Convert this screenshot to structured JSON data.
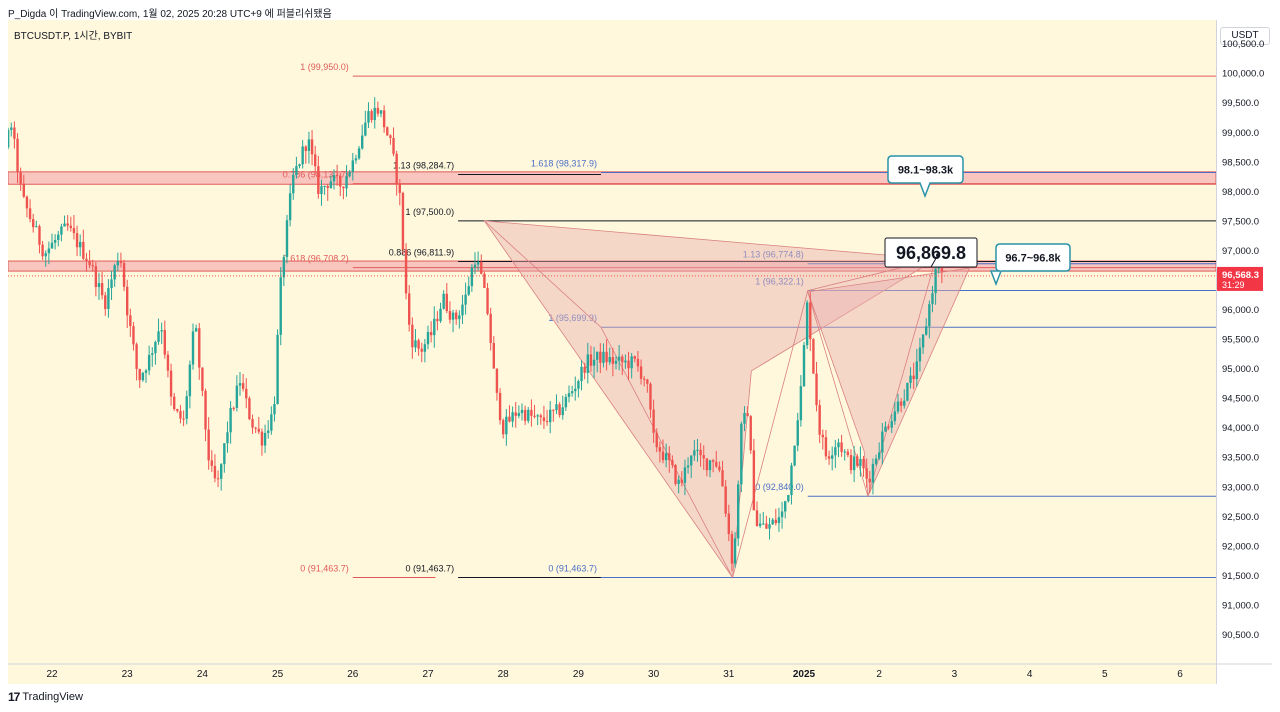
{
  "header": {
    "publish_line": "P_Digda 이 TradingView.com, 1월 02, 2025 20:28 UTC+9 에 퍼블리쉬됐음",
    "symbol_line": "BTCUSDT.P, 1시간, BYBIT"
  },
  "footer": {
    "logo": "17",
    "brand": "TradingView"
  },
  "currency": "USDT",
  "chart_data": {
    "type": "candlestick",
    "symbol": "BTCUSDT.P",
    "interval": "1시간",
    "exchange": "BYBIT",
    "ylim": [
      90000,
      100900
    ],
    "y_ticks": [
      "90,500.0",
      "91,000.0",
      "91,500.0",
      "92,000.0",
      "92,500.0",
      "93,000.0",
      "93,500.0",
      "94,000.0",
      "94,500.0",
      "95,000.0",
      "95,500.0",
      "96,000.0",
      "96,500.0",
      "97,000.0",
      "97,500.0",
      "98,000.0",
      "98,500.0",
      "99,000.0",
      "99,500.0",
      "100,000.0",
      "100,500.0"
    ],
    "x_ticks": [
      {
        "label": "22",
        "day": 22
      },
      {
        "label": "23",
        "day": 23
      },
      {
        "label": "24",
        "day": 24
      },
      {
        "label": "25",
        "day": 25
      },
      {
        "label": "26",
        "day": 26
      },
      {
        "label": "27",
        "day": 27
      },
      {
        "label": "28",
        "day": 28
      },
      {
        "label": "29",
        "day": 29
      },
      {
        "label": "30",
        "day": 30
      },
      {
        "label": "31",
        "day": 31
      },
      {
        "label": "2025",
        "day": 32
      },
      {
        "label": "2",
        "day": 33
      },
      {
        "label": "3",
        "day": 34
      },
      {
        "label": "4",
        "day": 35
      },
      {
        "label": "5",
        "day": 36
      },
      {
        "label": "6",
        "day": 37
      }
    ],
    "colors": {
      "up": "#26a69a",
      "down": "#ef5350",
      "zone": "#f7b6b6",
      "zone_border": "#e05a5a",
      "fib_red": "#e05a5a",
      "fib_blue": "#4a6fc8",
      "pattern_fill": "#e9b0b0",
      "callout": "#2a93a9"
    },
    "last_price": {
      "value": "96,568.3",
      "countdown": "31:29",
      "price": 96568.3
    },
    "price_callout": {
      "label": "96,869.8",
      "day": 33.78,
      "price": 96869.8
    },
    "zones": [
      {
        "from": 98120,
        "to": 98330,
        "label": "98.1~98.3k"
      },
      {
        "from": 96650,
        "to": 96820,
        "label": "96.7~96.8k"
      }
    ],
    "fib_levels": [
      {
        "label": "1 (99,950.0)",
        "price": 99950,
        "color": "red",
        "x_from": 26.0,
        "x_to": 38.5
      },
      {
        "label": "0.786 (98,130.7)",
        "price": 98130.7,
        "color": "red",
        "x_from": 26.0,
        "x_to": 38.5
      },
      {
        "label": "0.618 (96,708.2)",
        "price": 96708.2,
        "color": "red",
        "x_from": 26.0,
        "x_to": 38.5
      },
      {
        "label": "0 (91,463.7)",
        "price": 91463.7,
        "color": "red",
        "x_from": 26.0,
        "x_to": 27.1
      },
      {
        "label": "1.13 (98,284.7)",
        "price": 98284.7,
        "color": "black",
        "x_from": 27.4,
        "x_to": 29.3
      },
      {
        "label": "1 (97,500.0)",
        "price": 97500,
        "color": "black",
        "x_from": 27.4,
        "x_to": 38.5
      },
      {
        "label": "0.886 (96,811.9)",
        "price": 96811.9,
        "color": "black",
        "x_from": 27.4,
        "x_to": 38.5
      },
      {
        "label": "0 (91,463.7)",
        "price": 91463.7,
        "color": "black",
        "x_from": 27.4,
        "x_to": 29.3
      },
      {
        "label": "1.618 (98,317.9)",
        "price": 98317.9,
        "color": "blue",
        "x_from": 29.3,
        "x_to": 38.5
      },
      {
        "label": "1 (95,699.9)",
        "price": 95699.9,
        "color": "blue",
        "x_from": 29.3,
        "x_to": 38.5
      },
      {
        "label": "0 (91,463.7)",
        "price": 91463.7,
        "color": "blue",
        "x_from": 29.3,
        "x_to": 38.5
      },
      {
        "label": "1.13 (96,774.8)",
        "price": 96774.8,
        "color": "blue",
        "x_from": 32.05,
        "x_to": 38.5
      },
      {
        "label": "1 (96,322.1)",
        "price": 96322.1,
        "color": "blue",
        "x_from": 32.05,
        "x_to": 38.5
      },
      {
        "label": "0 (92,840.0)",
        "price": 92840,
        "color": "blue",
        "x_from": 32.05,
        "x_to": 38.5
      }
    ],
    "patterns": [
      {
        "points": [
          [
            27.75,
            97500
          ],
          [
            31.05,
            91463.7
          ],
          [
            31.3,
            94960
          ],
          [
            33.75,
            96850
          ]
        ]
      },
      {
        "points": [
          [
            32.05,
            96300
          ],
          [
            32.8,
            93600
          ],
          [
            32.85,
            92840
          ],
          [
            34.2,
            96700
          ]
        ]
      }
    ],
    "pattern_x": [
      [
        27.75,
        97500
      ],
      [
        29.3,
        95700
      ],
      [
        31.05,
        91463.7
      ],
      [
        32.05,
        96320
      ],
      [
        33.75,
        96850
      ]
    ],
    "pattern_x2": [
      [
        32.05,
        96300
      ],
      [
        32.85,
        92840
      ],
      [
        33.75,
        96850
      ]
    ],
    "anchors": [
      [
        21.0,
        97400
      ],
      [
        21.1,
        97200
      ],
      [
        21.3,
        98100
      ],
      [
        21.45,
        99200
      ],
      [
        21.6,
        97900
      ],
      [
        21.9,
        96950
      ],
      [
        22.2,
        97400
      ],
      [
        22.5,
        96800
      ],
      [
        22.7,
        96100
      ],
      [
        22.9,
        97000
      ],
      [
        23.0,
        96000
      ],
      [
        23.15,
        94800
      ],
      [
        23.3,
        95200
      ],
      [
        23.45,
        95800
      ],
      [
        23.6,
        94300
      ],
      [
        23.75,
        94100
      ],
      [
        23.9,
        95800
      ],
      [
        24.0,
        94500
      ],
      [
        24.1,
        93300
      ],
      [
        24.2,
        93000
      ],
      [
        24.35,
        94100
      ],
      [
        24.5,
        94800
      ],
      [
        24.65,
        94100
      ],
      [
        24.8,
        93800
      ],
      [
        24.95,
        94300
      ],
      [
        25.0,
        95500
      ],
      [
        25.05,
        96600
      ],
      [
        25.2,
        98200
      ],
      [
        25.4,
        98900
      ],
      [
        25.55,
        98000
      ],
      [
        25.7,
        98200
      ],
      [
        25.85,
        98100
      ],
      [
        26.0,
        98500
      ],
      [
        26.2,
        99300
      ],
      [
        26.35,
        99400
      ],
      [
        26.5,
        98800
      ],
      [
        26.62,
        98000
      ],
      [
        26.72,
        96000
      ],
      [
        26.78,
        95500
      ],
      [
        26.9,
        95300
      ],
      [
        27.05,
        95600
      ],
      [
        27.2,
        96200
      ],
      [
        27.35,
        95800
      ],
      [
        27.5,
        96200
      ],
      [
        27.62,
        96900
      ],
      [
        27.7,
        96600
      ],
      [
        27.8,
        95900
      ],
      [
        27.9,
        94600
      ],
      [
        28.0,
        94000
      ],
      [
        28.2,
        94300
      ],
      [
        28.5,
        94100
      ],
      [
        28.75,
        94300
      ],
      [
        28.95,
        94700
      ],
      [
        29.1,
        95100
      ],
      [
        29.3,
        95200
      ],
      [
        29.5,
        95100
      ],
      [
        29.75,
        95100
      ],
      [
        29.9,
        94800
      ],
      [
        30.0,
        93800
      ],
      [
        30.2,
        93400
      ],
      [
        30.35,
        93000
      ],
      [
        30.5,
        93600
      ],
      [
        30.7,
        93400
      ],
      [
        30.8,
        93500
      ],
      [
        30.9,
        93200
      ],
      [
        31.0,
        92200
      ],
      [
        31.05,
        91700
      ],
      [
        31.1,
        92300
      ],
      [
        31.15,
        93900
      ],
      [
        31.25,
        94300
      ],
      [
        31.35,
        92400
      ],
      [
        31.5,
        92300
      ],
      [
        31.7,
        92500
      ],
      [
        31.8,
        93000
      ],
      [
        31.9,
        94100
      ],
      [
        31.95,
        94500
      ],
      [
        32.05,
        96200
      ],
      [
        32.1,
        95300
      ],
      [
        32.2,
        94000
      ],
      [
        32.3,
        93500
      ],
      [
        32.45,
        93800
      ],
      [
        32.6,
        93400
      ],
      [
        32.75,
        93400
      ],
      [
        32.85,
        93100
      ],
      [
        32.95,
        93500
      ],
      [
        33.05,
        93900
      ],
      [
        33.2,
        94300
      ],
      [
        33.35,
        94600
      ],
      [
        33.5,
        95000
      ],
      [
        33.6,
        95600
      ],
      [
        33.72,
        96450
      ],
      [
        33.78,
        96820
      ],
      [
        33.85,
        96568
      ]
    ]
  }
}
